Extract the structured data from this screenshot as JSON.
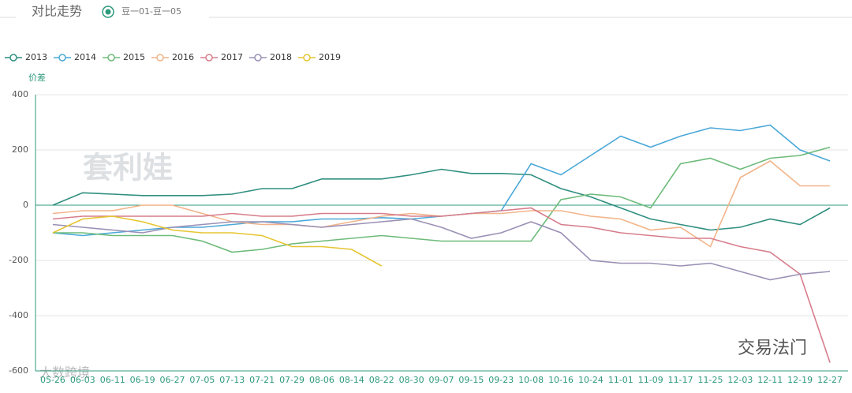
{
  "header": {
    "title": "对比走势",
    "option": "豆一01-豆一05"
  },
  "watermarks": [
    "套利娃",
    "交易法门",
    "大数跨境"
  ],
  "chart_data": {
    "type": "line",
    "y_label": "价差",
    "categories": [
      "05-26",
      "06-03",
      "06-11",
      "06-19",
      "06-27",
      "07-05",
      "07-13",
      "07-21",
      "07-29",
      "08-06",
      "08-14",
      "08-22",
      "08-30",
      "09-07",
      "09-15",
      "09-23",
      "10-08",
      "10-16",
      "10-24",
      "11-01",
      "11-09",
      "11-17",
      "11-25",
      "12-03",
      "12-11",
      "12-19",
      "12-27"
    ],
    "series": [
      {
        "name": "2013",
        "color": "#2f8f7f",
        "values": [
          0,
          45,
          40,
          35,
          35,
          35,
          40,
          60,
          60,
          95,
          95,
          95,
          110,
          130,
          115,
          115,
          110,
          60,
          30,
          -10,
          -50,
          -70,
          -90,
          -80,
          -50,
          -70,
          -10
        ]
      },
      {
        "name": "2014",
        "color": "#4aa8d8",
        "values": [
          -100,
          -110,
          -100,
          -90,
          -80,
          -80,
          -70,
          -60,
          -60,
          -50,
          -50,
          -45,
          -50,
          -40,
          -30,
          -20,
          150,
          110,
          180,
          250,
          210,
          250,
          280,
          270,
          290,
          200,
          160
        ]
      },
      {
        "name": "2015",
        "color": "#6dbb7a",
        "values": [
          -100,
          -100,
          -110,
          -110,
          -110,
          -130,
          -170,
          -160,
          -140,
          -130,
          -120,
          -110,
          -120,
          -130,
          -130,
          -130,
          -130,
          20,
          40,
          30,
          -10,
          150,
          170,
          130,
          170,
          180,
          210
        ]
      },
      {
        "name": "2016",
        "color": "#f2b48a",
        "values": [
          -30,
          -20,
          -20,
          0,
          0,
          -30,
          -60,
          -70,
          -70,
          -80,
          -60,
          -40,
          -30,
          -40,
          -30,
          -30,
          -20,
          -20,
          -40,
          -50,
          -90,
          -80,
          -150,
          100,
          160,
          70,
          70
        ]
      },
      {
        "name": "2017",
        "color": "#d77d8c",
        "values": [
          -50,
          -40,
          -40,
          -40,
          -40,
          -40,
          -30,
          -40,
          -40,
          -30,
          -30,
          -30,
          -40,
          -40,
          -30,
          -20,
          -10,
          -70,
          -80,
          -100,
          -110,
          -120,
          -120,
          -150,
          -170,
          -250,
          -570
        ]
      },
      {
        "name": "2018",
        "color": "#9a90b5",
        "values": [
          -70,
          -80,
          -90,
          -100,
          -80,
          -70,
          -60,
          -60,
          -70,
          -80,
          -70,
          -60,
          -50,
          -80,
          -120,
          -100,
          -60,
          -100,
          -200,
          -210,
          -210,
          -220,
          -210,
          -240,
          -270,
          -250,
          -240
        ]
      },
      {
        "name": "2019",
        "color": "#e5c531",
        "values": [
          -100,
          -50,
          -40,
          -60,
          -90,
          -100,
          -100,
          -110,
          -150,
          -150,
          -160,
          -220,
          null,
          null,
          null,
          null,
          null,
          null,
          null,
          null,
          null,
          null,
          null,
          null,
          null,
          null,
          null
        ]
      }
    ],
    "ylim": [
      -600,
      400
    ],
    "yticks": [
      -600,
      -400,
      -200,
      0,
      200,
      400
    ],
    "grid": true
  }
}
